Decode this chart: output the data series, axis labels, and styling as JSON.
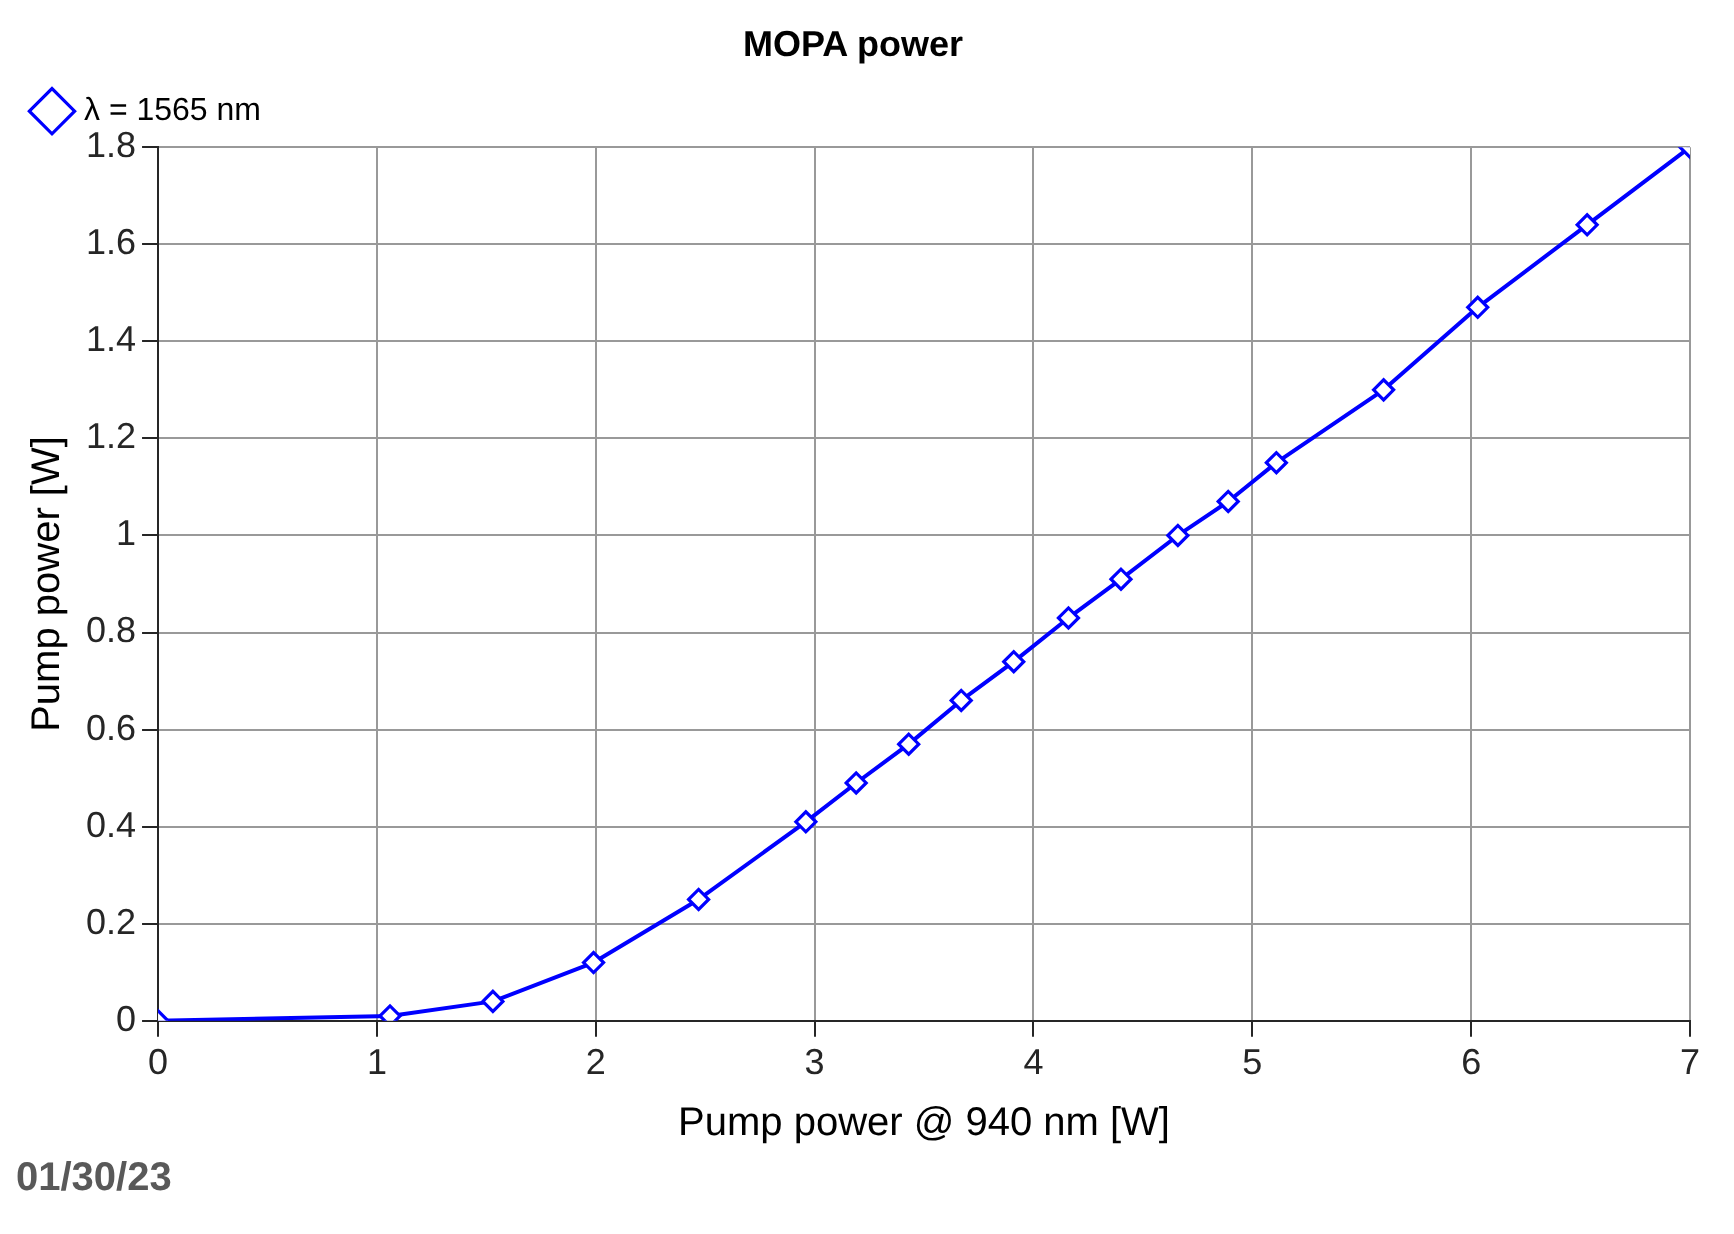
{
  "chart_data": {
    "type": "line",
    "title": "MOPA power",
    "xlabel": "Pump power @ 940 nm [W]",
    "ylabel": "Pump power [W]",
    "x": [
      0,
      1.06,
      1.53,
      1.99,
      2.47,
      2.96,
      3.19,
      3.43,
      3.67,
      3.91,
      4.16,
      4.4,
      4.66,
      4.89,
      5.11,
      5.6,
      6.03,
      6.53,
      7.0
    ],
    "series": [
      {
        "name": "λ = 1565 nm",
        "color": "#0000ff",
        "values": [
          0,
          0.01,
          0.04,
          0.12,
          0.25,
          0.41,
          0.49,
          0.57,
          0.66,
          0.74,
          0.83,
          0.91,
          1.0,
          1.07,
          1.15,
          1.3,
          1.47,
          1.64,
          1.8
        ]
      }
    ],
    "xlim": [
      0,
      7
    ],
    "xticks": [
      0,
      1,
      2,
      3,
      4,
      5,
      6,
      7
    ],
    "ylim": [
      0,
      1.8
    ],
    "yticks": [
      0,
      0.2,
      0.4,
      0.6,
      0.8,
      1,
      1.2,
      1.4,
      1.6,
      1.8
    ],
    "grid": true,
    "legend": "top left",
    "marker": "diamond",
    "line_style": "solid",
    "annotations": [
      "01/30/23"
    ]
  }
}
